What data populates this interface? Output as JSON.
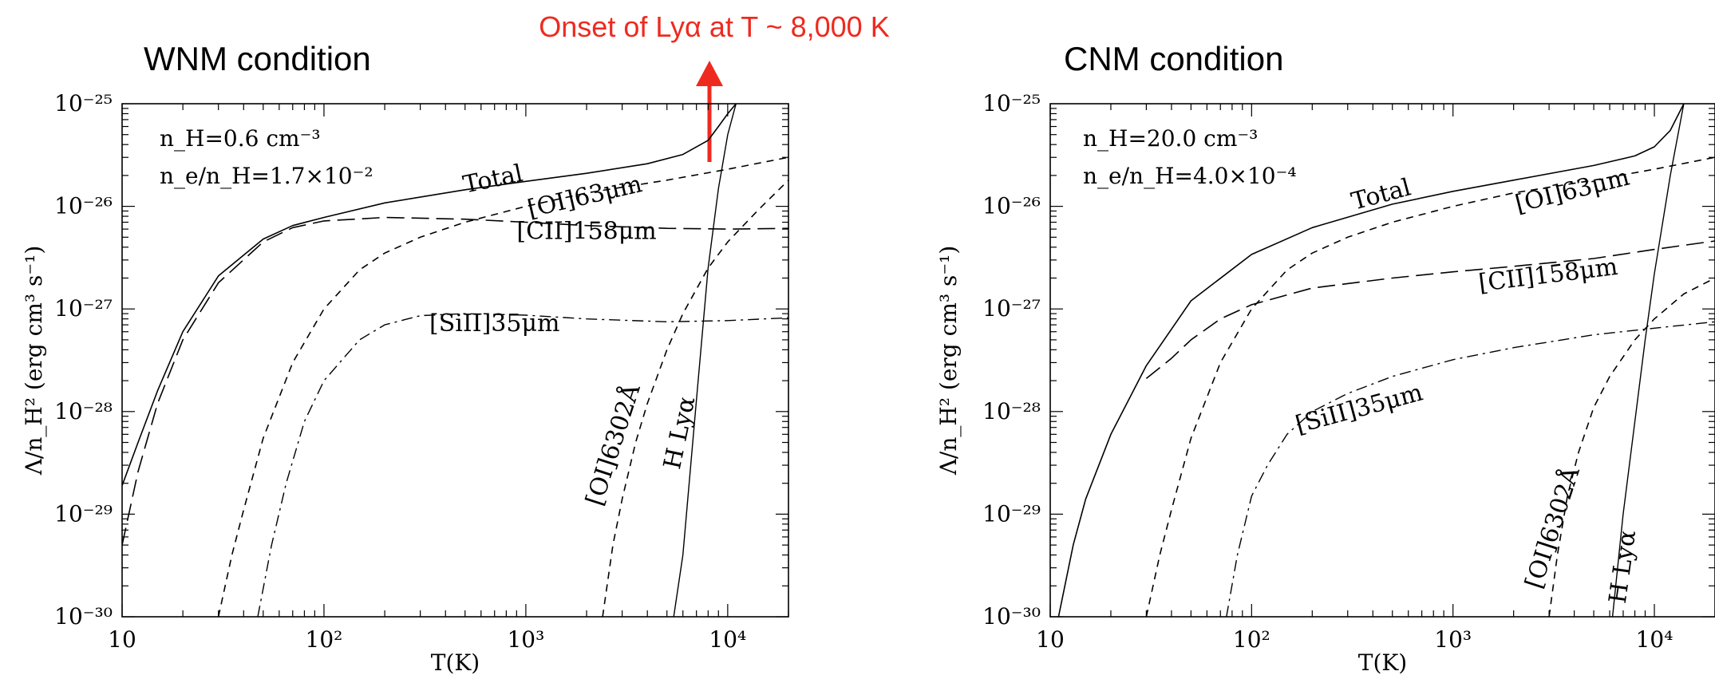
{
  "annotation": {
    "text": "Onset of Lyα at T ~ 8,000 K",
    "color": "#ee2a1f"
  },
  "chart_data": [
    {
      "type": "line",
      "title": "WNM condition",
      "xlabel": "T(K)",
      "ylabel": "Λ/n_H² (erg cm³ s⁻¹)",
      "xscale": "log",
      "yscale": "log",
      "xlim": [
        10,
        20000
      ],
      "ylim": [
        1e-30,
        1e-25
      ],
      "x_ticks": [
        {
          "value": 10,
          "label": "10"
        },
        {
          "value": 100,
          "label": "10²"
        },
        {
          "value": 1000,
          "label": "10³"
        },
        {
          "value": 10000,
          "label": "10⁴"
        }
      ],
      "y_ticks": [
        {
          "value": 1e-25,
          "label": "10⁻²⁵"
        },
        {
          "value": 1e-26,
          "label": "10⁻²⁶"
        },
        {
          "value": 1e-27,
          "label": "10⁻²⁷"
        },
        {
          "value": 1e-28,
          "label": "10⁻²⁸"
        },
        {
          "value": 1e-29,
          "label": "10⁻²⁹"
        },
        {
          "value": 1e-30,
          "label": "10⁻³⁰"
        }
      ],
      "params": [
        "n_H=0.6 cm⁻³",
        "n_e/n_H=1.7×10⁻²"
      ],
      "arrow_at_T": 8000,
      "series": [
        {
          "name": "Total",
          "style": "solid",
          "x": [
            10,
            12,
            15,
            20,
            30,
            50,
            70,
            100,
            200,
            500,
            1000,
            2000,
            4000,
            6000,
            8000,
            9000,
            10000,
            11000
          ],
          "y": [
            1.9e-29,
            5e-29,
            1.6e-28,
            6e-28,
            2.1e-27,
            4.8e-27,
            6.5e-27,
            7.8e-27,
            1.08e-26,
            1.45e-26,
            1.75e-26,
            2.1e-26,
            2.6e-26,
            3.2e-26,
            4.4e-26,
            6e-26,
            8e-26,
            1e-25
          ]
        },
        {
          "name": "[OI]63μm",
          "style": "dash",
          "x": [
            30,
            35,
            40,
            50,
            70,
            100,
            150,
            200,
            300,
            500,
            1000,
            2000,
            5000,
            10000,
            20000
          ],
          "y": [
            1e-30,
            4e-30,
            1.1e-29,
            5.5e-29,
            3e-28,
            1e-27,
            2.4e-27,
            3.5e-27,
            5e-27,
            7e-27,
            1e-26,
            1.35e-26,
            1.8e-26,
            2.3e-26,
            3e-26
          ]
        },
        {
          "name": "[CII]158μm",
          "style": "longdash",
          "x": [
            10,
            12,
            15,
            20,
            30,
            50,
            70,
            100,
            200,
            500,
            1000,
            2000,
            5000,
            10000,
            20000
          ],
          "y": [
            5e-30,
            2.6e-29,
            1.2e-28,
            5e-28,
            1.8e-27,
            4.5e-27,
            6.2e-27,
            7.2e-27,
            7.8e-27,
            7.5e-27,
            7e-27,
            6.5e-27,
            6.1e-27,
            6e-27,
            6.1e-27
          ]
        },
        {
          "name": "[SiII]35μm",
          "style": "dashdot",
          "x": [
            47,
            55,
            65,
            80,
            100,
            150,
            200,
            300,
            500,
            1000,
            2000,
            5000,
            10000,
            20000
          ],
          "y": [
            1e-30,
            5e-30,
            2e-29,
            8e-29,
            2e-28,
            5e-28,
            7e-28,
            8.6e-28,
            9e-28,
            8.7e-28,
            8e-28,
            7.5e-28,
            7.7e-28,
            8.2e-28
          ]
        },
        {
          "name": "[OI]6302Å",
          "style": "dash",
          "x": [
            2400,
            2700,
            3000,
            3500,
            4000,
            5000,
            6000,
            8000,
            10000,
            14000,
            20000
          ],
          "y": [
            1e-30,
            5e-30,
            1.4e-29,
            5e-29,
            1.2e-28,
            4e-28,
            9e-28,
            2.5e-27,
            4.5e-27,
            9e-27,
            1.8e-26
          ]
        },
        {
          "name": "H Lyα",
          "style": "thinsolid",
          "x": [
            5400,
            6000,
            7000,
            8000,
            9000,
            10000,
            11000
          ],
          "y": [
            1e-30,
            4e-30,
            1.3e-28,
            2.5e-27,
            1.5e-26,
            5e-26,
            1e-25
          ]
        }
      ]
    },
    {
      "type": "line",
      "title": "CNM condition",
      "xlabel": "T(K)",
      "ylabel": "Λ/n_H² (erg cm³ s⁻¹)",
      "xscale": "log",
      "yscale": "log",
      "xlim": [
        10,
        20000
      ],
      "ylim": [
        1e-30,
        1e-25
      ],
      "x_ticks": [
        {
          "value": 10,
          "label": "10"
        },
        {
          "value": 100,
          "label": "10²"
        },
        {
          "value": 1000,
          "label": "10³"
        },
        {
          "value": 10000,
          "label": "10⁴"
        }
      ],
      "y_ticks": [
        {
          "value": 1e-25,
          "label": "10⁻²⁵"
        },
        {
          "value": 1e-26,
          "label": "10⁻²⁶"
        },
        {
          "value": 1e-27,
          "label": "10⁻²⁷"
        },
        {
          "value": 1e-28,
          "label": "10⁻²⁸"
        },
        {
          "value": 1e-29,
          "label": "10⁻²⁹"
        },
        {
          "value": 1e-30,
          "label": "10⁻³⁰"
        }
      ],
      "params": [
        "n_H=20.0 cm⁻³",
        "n_e/n_H=4.0×10⁻⁴"
      ],
      "series": [
        {
          "name": "Total",
          "style": "solid",
          "x": [
            11,
            13,
            15,
            20,
            30,
            50,
            100,
            200,
            500,
            1000,
            2000,
            5000,
            8000,
            10000,
            12000,
            14000
          ],
          "y": [
            1e-30,
            5e-30,
            1.4e-29,
            6e-29,
            2.8e-28,
            1.2e-27,
            3.4e-27,
            6.2e-27,
            1.05e-26,
            1.4e-26,
            1.8e-26,
            2.5e-26,
            3.1e-26,
            3.8e-26,
            5.5e-26,
            1e-25
          ]
        },
        {
          "name": "[OI]63μm",
          "style": "dash",
          "x": [
            30,
            35,
            40,
            50,
            70,
            100,
            150,
            200,
            300,
            500,
            1000,
            2000,
            5000,
            10000,
            20000
          ],
          "y": [
            1e-30,
            4e-30,
            1.1e-29,
            5.5e-29,
            3e-28,
            1e-27,
            2.4e-27,
            3.5e-27,
            5e-27,
            7e-27,
            1e-26,
            1.35e-26,
            1.8e-26,
            2.3e-26,
            3e-26
          ]
        },
        {
          "name": "[CII]158μm",
          "style": "longdash",
          "x": [
            30,
            40,
            50,
            70,
            100,
            200,
            500,
            1000,
            2000,
            5000,
            10000,
            20000
          ],
          "y": [
            2.1e-28,
            3.3e-28,
            5e-28,
            8e-28,
            1.1e-27,
            1.6e-27,
            2e-27,
            2.3e-27,
            2.6e-27,
            3.1e-27,
            3.8e-27,
            4.6e-27
          ]
        },
        {
          "name": "[SiII]35μm",
          "style": "dashdot",
          "x": [
            75,
            85,
            100,
            120,
            150,
            200,
            300,
            500,
            1000,
            2000,
            5000,
            10000,
            20000
          ],
          "y": [
            1e-30,
            4e-30,
            1.5e-29,
            3e-29,
            6e-29,
            1e-28,
            1.5e-28,
            2.2e-28,
            3.2e-28,
            4.2e-28,
            5.6e-28,
            6.5e-28,
            7.5e-28
          ]
        },
        {
          "name": "[OI]6302Å",
          "style": "dash",
          "x": [
            3000,
            3300,
            3700,
            4200,
            5000,
            6000,
            8000,
            10000,
            14000,
            20000
          ],
          "y": [
            1e-30,
            4e-30,
            1.5e-29,
            4e-29,
            1.1e-28,
            2.2e-28,
            5e-28,
            8e-28,
            1.4e-27,
            2e-27
          ]
        },
        {
          "name": "H Lyα",
          "style": "thinsolid",
          "x": [
            6200,
            7000,
            8000,
            9000,
            10000,
            12000,
            14000
          ],
          "y": [
            1e-30,
            1e-29,
            8e-29,
            5e-28,
            2.2e-27,
            2e-26,
            1e-25
          ]
        }
      ]
    }
  ]
}
